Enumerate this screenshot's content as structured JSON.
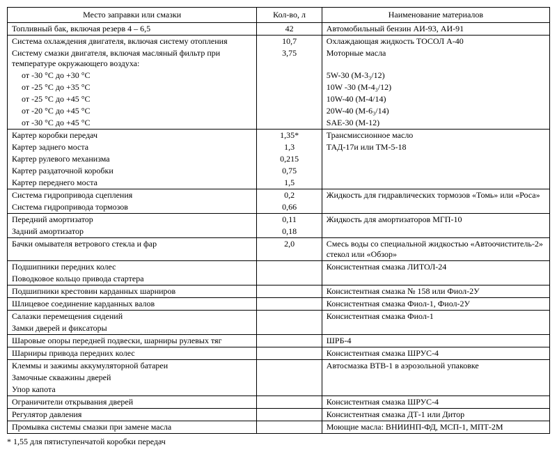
{
  "columns": [
    "Место заправки или смазки",
    "Кол-во, л",
    "Наименование материалов"
  ],
  "col_widths": [
    "46%",
    "12%",
    "42%"
  ],
  "alignments": [
    "left",
    "center",
    "left"
  ],
  "font_family": "Times New Roman",
  "font_size_pt": 10,
  "colors": {
    "text": "#000000",
    "background": "#ffffff",
    "border": "#000000"
  },
  "sections": [
    {
      "rows": [
        [
          "Топливный бак, включая резерв 4 – 6,5",
          "42",
          "Автомобильный бензин АИ-93, АИ-91"
        ]
      ]
    },
    {
      "rows": [
        [
          "Система охлаждения двигателя, включая систему отопления",
          "10,7",
          "Охлаждающая жидкость ТОСОЛ А-40"
        ],
        [
          "Систему смазки двигателя, включая масляный фильтр при температуре окружающего воздуха:",
          "3,75",
          "Моторные масла"
        ],
        [
          "от -30 °С до +30 °С",
          "",
          "5W-30 (М-3₃/12)"
        ],
        [
          "от -25 °С до +35 °С",
          "",
          "10W -30 (М-4₃/12)"
        ],
        [
          "от -25 °С до +45 °С",
          "",
          "10W-40 (М-4/14)"
        ],
        [
          "от -20 °С до +45 °С",
          "",
          "20W-40 (М-6₃/14)"
        ],
        [
          "от -30 °С до +45 °С",
          "",
          "SAE-30  (М-12)"
        ]
      ],
      "indent_rows": [
        2,
        3,
        4,
        5,
        6
      ]
    },
    {
      "rows": [
        [
          "Картер коробки передач",
          "1,35*",
          "Трансмиссионное масло"
        ],
        [
          "Картер заднего моста",
          "1,3",
          "ТАД-17и или ТМ-5-18"
        ],
        [
          "Картер рулевого механизма",
          "0,215",
          ""
        ],
        [
          "Картер раздаточной коробки",
          "0,75",
          ""
        ],
        [
          "Картер переднего моста",
          "1,5",
          ""
        ]
      ]
    },
    {
      "rows": [
        [
          "Система гидропривода сцепления",
          "0,2",
          "Жидкость для гидравлических тормозов «Томь» или «Роса»"
        ],
        [
          "Система гидропривода тормозов",
          "0,66",
          ""
        ]
      ]
    },
    {
      "rows": [
        [
          "Передний амортизатор",
          "0,11",
          "Жидкость для амортизаторов МГП-10"
        ],
        [
          "Задний амортизатор",
          "0,18",
          ""
        ]
      ]
    },
    {
      "rows": [
        [
          "Бачки омывателя ветрового стекла и фар",
          "2,0",
          "Смесь воды со специальной жидкостью «Автоочиститель-2» стекол или «Обзор»"
        ]
      ]
    },
    {
      "rows": [
        [
          "Подшипники передних колес",
          "",
          "Консистентная смазка ЛИТОЛ-24"
        ],
        [
          "Поводковое кольцо привода стартера",
          "",
          ""
        ]
      ]
    },
    {
      "rows": [
        [
          "Подшипники крестовин карданных шарниров",
          "",
          "Консистентная смазка № 158 или Фиол-2У"
        ]
      ]
    },
    {
      "rows": [
        [
          "Шлицевое соединение карданных валов",
          "",
          "Консистентная смазка Фиол-1, Фиол-2У"
        ]
      ]
    },
    {
      "rows": [
        [
          "Салазки перемещения сидений",
          "",
          "Консистентная смазка Фиол-1"
        ],
        [
          "Замки дверей и фиксаторы",
          "",
          ""
        ]
      ]
    },
    {
      "rows": [
        [
          "Шаровые опоры передней подвески, шарниры рулевых тяг",
          "",
          "ШРБ-4"
        ]
      ]
    },
    {
      "rows": [
        [
          "Шарниры привода передних колес",
          "",
          "Консистентная смазка ШРУС-4"
        ]
      ]
    },
    {
      "rows": [
        [
          "Клеммы и зажимы аккумуляторной батареи",
          "",
          "Автосмазка ВТВ-1 в аэрозольной упаковке"
        ],
        [
          "Замочные скважины дверей",
          "",
          ""
        ],
        [
          "Упор капота",
          "",
          ""
        ]
      ]
    },
    {
      "rows": [
        [
          "Ограничители открывания дверей",
          "",
          "Консистентная смазка ШРУС-4"
        ]
      ]
    },
    {
      "rows": [
        [
          "Регулятор давления",
          "",
          "Консистентная смазка ДТ-1 или Дитор"
        ]
      ]
    },
    {
      "rows": [
        [
          "Промывка системы смазки при замене масла",
          "",
          "Моющие масла: ВНИИНП-ФД, МСП-1, МПТ-2М"
        ]
      ]
    }
  ],
  "footnote": "* 1,55 для пятиступенчатой коробки передач"
}
